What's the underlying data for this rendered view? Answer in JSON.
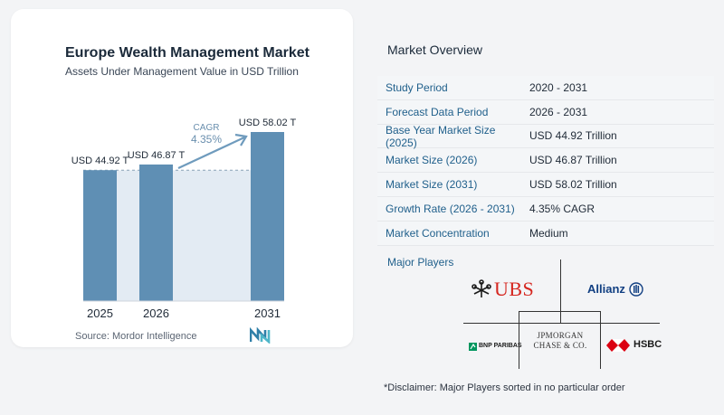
{
  "chart": {
    "title": "Europe Wealth Management Market",
    "subtitle": "Assets Under Management Value in USD Trillion",
    "source": "Source:  Mordor Intelligence",
    "cagr_label": "CAGR",
    "cagr_value": "4.35%"
  },
  "chart_data": {
    "type": "bar",
    "categories": [
      "2025",
      "2026",
      "2031"
    ],
    "values": [
      44.92,
      46.87,
      58.02
    ],
    "data_labels": [
      "USD 44.92 T",
      "USD 46.87 T",
      "USD 58.02 T"
    ],
    "title": "Europe Wealth Management Market",
    "subtitle": "Assets Under Management Value in USD Trillion",
    "xlabel": "",
    "ylabel": "",
    "ylim": [
      0,
      58.02
    ],
    "grid": false,
    "colors": {
      "bar": "#5f8fb4",
      "shade": "#e3ebf3",
      "arrow": "#6f9bbd",
      "cagr": "#6a8fae"
    }
  },
  "overview": {
    "title": "Market Overview",
    "rows": [
      {
        "label": "Study Period",
        "value": "2020 - 2031"
      },
      {
        "label": "Forecast Data Period",
        "value": "2026 - 2031"
      },
      {
        "label": "Base Year Market Size (2025)",
        "value": "USD 44.92 Trillion"
      },
      {
        "label": "Market Size (2026)",
        "value": "USD 46.87 Trillion"
      },
      {
        "label": "Market Size (2031)",
        "value": "USD 58.02 Trillion"
      },
      {
        "label": "Growth Rate (2026 - 2031)",
        "value": "4.35% CAGR"
      },
      {
        "label": "Market Concentration",
        "value": "Medium"
      }
    ]
  },
  "players": {
    "title": "Major Players",
    "ubs": "UBS",
    "allianz": "Allianz",
    "jpm_line1": "JPMORGAN",
    "jpm_line2": "CHASE & CO.",
    "bnp": "BNP PARIBAS",
    "hsbc": "HSBC"
  },
  "disclaimer": "*Disclaimer: Major Players sorted in no particular order"
}
